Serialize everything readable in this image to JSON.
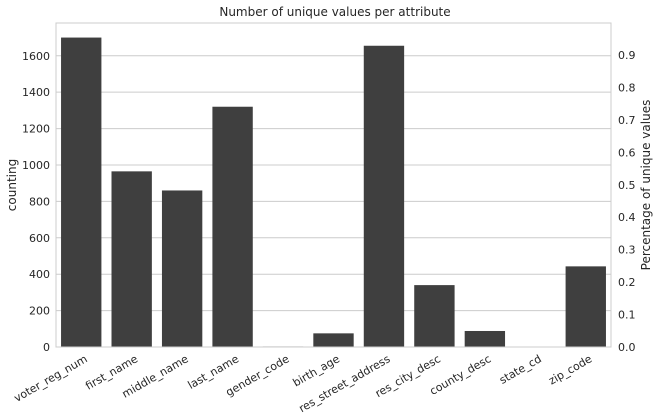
{
  "chart_data": {
    "type": "bar",
    "title": "Number of unique values per attribute",
    "xlabel": "",
    "ylabel": "counting",
    "y2label": "Percentage of unique values",
    "categories": [
      "voter_reg_num",
      "first_name",
      "middle_name",
      "last_name",
      "gender_code",
      "birth_age",
      "res_street_address",
      "res_city_desc",
      "county_desc",
      "state_cd",
      "zip_code"
    ],
    "values": [
      1700,
      965,
      860,
      1320,
      3,
      75,
      1655,
      340,
      88,
      1,
      443
    ],
    "ylim": [
      0,
      1780
    ],
    "y_ticks": [
      0,
      200,
      400,
      600,
      800,
      1000,
      1200,
      1400,
      1600
    ],
    "y2lim": [
      0,
      0.9985
    ],
    "y2_ticks": [
      "0.0",
      "0.1",
      "0.2",
      "0.3",
      "0.4",
      "0.5",
      "0.6",
      "0.7",
      "0.8",
      "0.9"
    ],
    "grid": true,
    "bar_color": "#3f3f3f",
    "grid_color": "#cccccc"
  }
}
